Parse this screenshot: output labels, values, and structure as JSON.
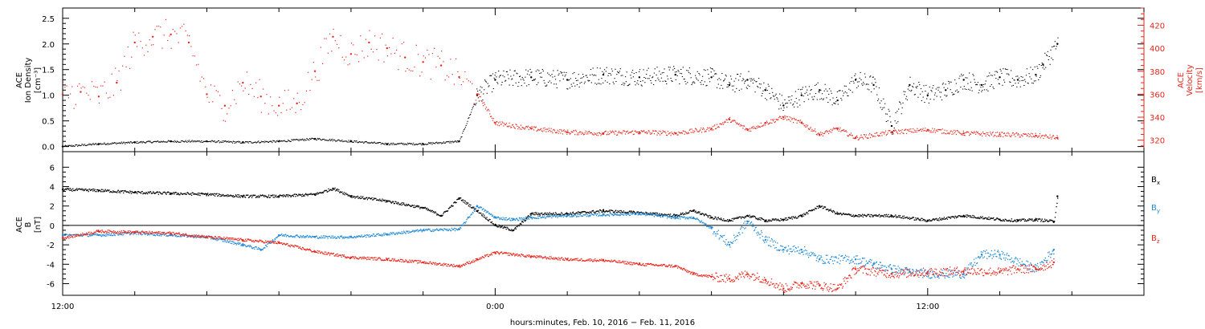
{
  "chart_data": [
    {
      "type": "scatter",
      "panel": "top",
      "title": "",
      "xlabel": "",
      "ylabel_left": [
        "ACE",
        "Ion Density",
        "[cm⁻³]"
      ],
      "ylabel_right": [
        "ACE",
        "Velocity",
        "[km/s]"
      ],
      "x_unit": "hours since Feb. 10, 2016 12:00",
      "x_range": [
        0,
        30
      ],
      "ylim_left": [
        -0.1,
        2.7
      ],
      "yticks_left": [
        0.0,
        0.5,
        1.0,
        1.5,
        2.0,
        2.5
      ],
      "ylim_right": [
        310,
        435
      ],
      "yticks_right": [
        320,
        340,
        360,
        380,
        400,
        420
      ],
      "colors": {
        "density": "#000000",
        "velocity": "#e8261c"
      },
      "series": [
        {
          "name": "Ion Density",
          "axis": "left",
          "color": "#000000",
          "x": [
            0,
            1,
            2,
            3,
            4,
            5,
            6,
            7,
            8,
            9,
            10,
            11,
            11.5,
            12,
            13,
            14,
            15,
            16,
            17,
            18,
            18.5,
            19,
            19.5,
            20,
            20.5,
            21,
            21.5,
            22,
            22.5,
            23,
            23.5,
            24,
            24.5,
            25,
            25.5,
            26,
            26.5,
            27,
            27.2,
            27.6
          ],
          "y": [
            0.0,
            0.05,
            0.08,
            0.1,
            0.1,
            0.08,
            0.1,
            0.15,
            0.1,
            0.05,
            0.05,
            0.1,
            1.0,
            1.3,
            1.35,
            1.3,
            1.4,
            1.35,
            1.4,
            1.35,
            1.2,
            1.3,
            1.1,
            0.8,
            1.0,
            1.1,
            0.9,
            1.3,
            1.2,
            0.4,
            1.2,
            1.0,
            1.1,
            1.3,
            1.2,
            1.35,
            1.3,
            1.4,
            1.6,
            2.0
          ]
        },
        {
          "name": "Velocity",
          "axis": "right",
          "color": "#e8261c",
          "x": [
            0,
            0.5,
            1,
            1.5,
            2,
            2.5,
            3,
            3.5,
            4,
            4.5,
            5,
            5.5,
            6,
            6.5,
            7,
            7.5,
            8,
            8.5,
            9,
            9.5,
            10,
            10.5,
            11,
            11.5,
            12,
            13,
            14,
            15,
            16,
            17,
            18,
            18.5,
            19,
            19.5,
            20,
            20.5,
            21,
            21.5,
            22,
            23,
            24,
            25,
            26,
            27,
            27.6
          ],
          "y": [
            360,
            362,
            358,
            370,
            405,
            410,
            412,
            405,
            360,
            350,
            370,
            358,
            350,
            352,
            380,
            410,
            395,
            405,
            400,
            392,
            388,
            385,
            375,
            360,
            335,
            330,
            327,
            326,
            327,
            326,
            330,
            338,
            329,
            335,
            340,
            335,
            325,
            330,
            322,
            327,
            329,
            326,
            325,
            324,
            322
          ]
        }
      ]
    },
    {
      "type": "scatter",
      "panel": "bottom",
      "title": "",
      "xlabel": "hours:minutes, Feb. 10, 2016 − Feb. 11, 2016",
      "ylabel": [
        "ACE",
        "B",
        "[nT]"
      ],
      "x_unit": "hours since Feb. 10, 2016 12:00",
      "x_range": [
        0,
        30
      ],
      "xtick_labels": [
        "12:00",
        "0:00",
        "12:00"
      ],
      "xtick_values": [
        0,
        12,
        24
      ],
      "ylim": [
        -7.2,
        7.6
      ],
      "yticks": [
        -6,
        -4,
        -2,
        0,
        2,
        4,
        6
      ],
      "legend_position": "right",
      "series": [
        {
          "name": "Bx",
          "label_main": "B",
          "label_sub": "x",
          "color": "#000000",
          "x": [
            0,
            1,
            2,
            3,
            4,
            5,
            6,
            7,
            7.5,
            8,
            9,
            10,
            10.5,
            11,
            11.5,
            12,
            12.5,
            13,
            14,
            15,
            16,
            17,
            17.5,
            18,
            18.5,
            19,
            19.5,
            20,
            20.5,
            21,
            21.5,
            22,
            23,
            24,
            25,
            26,
            26.5,
            27,
            27.5,
            27.6
          ],
          "y": [
            3.7,
            3.6,
            3.4,
            3.3,
            3.2,
            3.0,
            3.0,
            3.2,
            3.8,
            3.0,
            2.5,
            1.8,
            1.0,
            2.8,
            1.5,
            0.0,
            -0.5,
            1.2,
            1.2,
            1.5,
            1.3,
            1.0,
            1.5,
            0.8,
            0.5,
            1.0,
            0.5,
            0.6,
            1.0,
            2.0,
            1.2,
            1.0,
            1.0,
            0.5,
            1.0,
            0.6,
            0.5,
            0.6,
            0.4,
            3.0
          ]
        },
        {
          "name": "By",
          "label_main": "B",
          "label_sub": "y",
          "color": "#1f8ad6",
          "x": [
            0,
            1,
            2,
            3,
            4,
            5,
            5.5,
            6,
            7,
            8,
            9,
            10,
            11,
            11.5,
            12,
            12.5,
            13,
            14,
            15,
            16,
            16.5,
            17,
            17.5,
            18,
            18.5,
            19,
            19.5,
            20,
            20.5,
            21,
            22,
            22.5,
            23,
            23.5,
            24,
            25,
            25.5,
            26,
            27,
            27.5
          ],
          "y": [
            -1.0,
            -1.0,
            -0.8,
            -1.0,
            -1.2,
            -2.0,
            -2.5,
            -1.0,
            -1.2,
            -1.2,
            -0.9,
            -0.5,
            -0.4,
            2.0,
            0.8,
            0.6,
            0.8,
            1.0,
            1.1,
            1.2,
            1.0,
            0.8,
            0.8,
            -0.3,
            -2.0,
            0.4,
            -1.5,
            -2.5,
            -2.5,
            -3.5,
            -3.5,
            -4.0,
            -4.5,
            -4.8,
            -5.0,
            -5.0,
            -3.0,
            -3.0,
            -4.5,
            -2.5
          ]
        },
        {
          "name": "Bz",
          "label_main": "B",
          "label_sub": "z",
          "color": "#e8261c",
          "x": [
            0,
            1,
            2,
            3,
            4,
            5,
            6,
            7,
            8,
            9,
            10,
            11,
            11.5,
            12,
            13,
            14,
            15,
            16,
            17,
            17.5,
            18,
            18.5,
            19,
            19.5,
            20,
            20.5,
            21,
            21.5,
            22,
            23,
            24,
            25,
            26,
            26.5,
            27,
            27.5
          ],
          "y": [
            -1.3,
            -0.6,
            -0.7,
            -0.8,
            -1.2,
            -1.5,
            -1.8,
            -2.7,
            -3.3,
            -3.5,
            -3.8,
            -4.2,
            -3.5,
            -2.8,
            -3.2,
            -3.5,
            -3.6,
            -4.0,
            -4.2,
            -5.0,
            -5.3,
            -5.5,
            -5.0,
            -5.6,
            -6.5,
            -6.0,
            -6.2,
            -6.5,
            -4.5,
            -5.0,
            -4.8,
            -4.7,
            -4.8,
            -4.5,
            -4.5,
            -3.8
          ]
        }
      ]
    }
  ]
}
